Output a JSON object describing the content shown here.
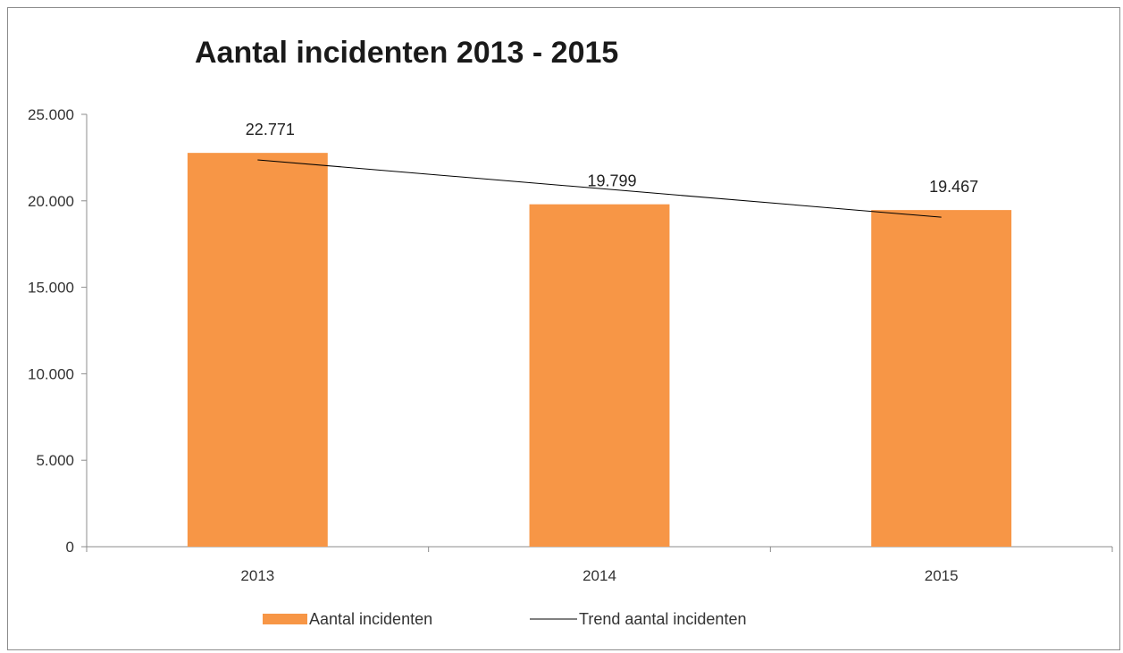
{
  "chart_data": {
    "type": "bar",
    "title": "Aantal incidenten 2013 - 2015",
    "categories": [
      "2013",
      "2014",
      "2015"
    ],
    "series": [
      {
        "name": "Aantal incidenten",
        "type": "bar",
        "values": [
          22771,
          19799,
          19467
        ],
        "color": "#F79646"
      },
      {
        "name": "Trend aantal incidenten",
        "type": "line",
        "values": [
          22368,
          20710,
          19052
        ],
        "color": "#000000"
      }
    ],
    "data_labels": [
      "22.771",
      "19.799",
      "19.467"
    ],
    "y_ticks": [
      "0",
      "5.000",
      "10.000",
      "15.000",
      "20.000",
      "25.000"
    ],
    "ylim": [
      0,
      25000
    ],
    "xlabel": "",
    "ylabel": "",
    "grid": false,
    "legend_position": "bottom"
  }
}
